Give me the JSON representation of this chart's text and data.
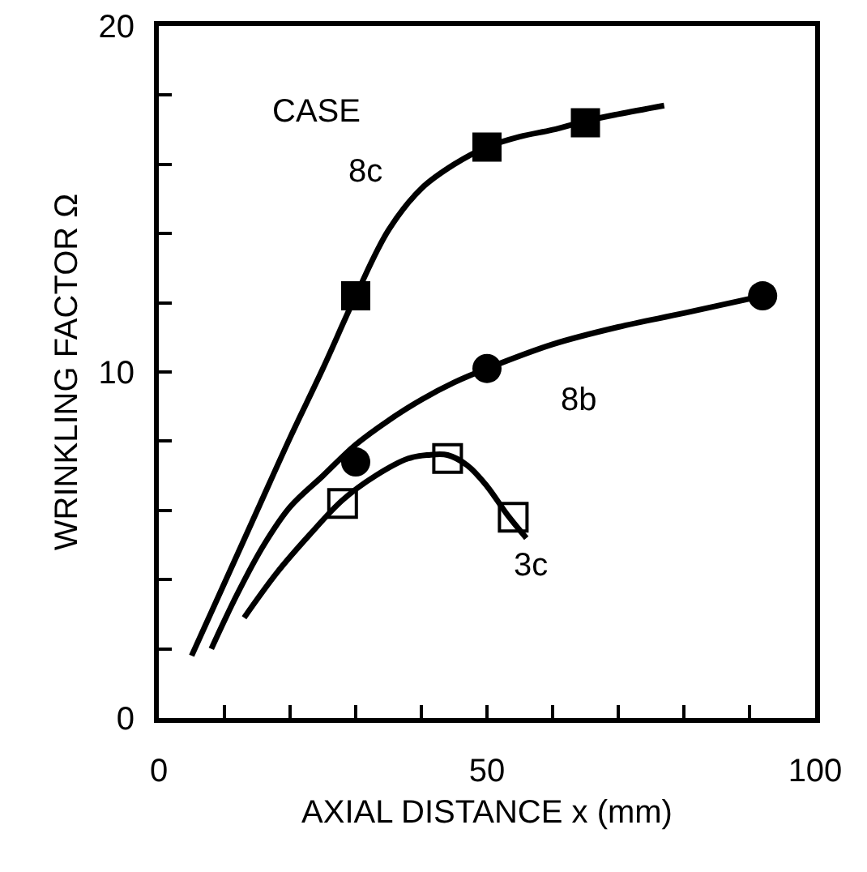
{
  "chart_data": {
    "type": "scatter",
    "xlabel": "AXIAL DISTANCE x (mm)",
    "ylabel": "WRINKLING FACTOR Ω",
    "xlim": [
      0,
      100
    ],
    "xticks": [
      0,
      {
        "value": 10,
        "label": null
      },
      {
        "value": 20,
        "label": null
      },
      {
        "value": 30,
        "label": null
      },
      {
        "value": 40,
        "label": null
      },
      50,
      {
        "value": 60,
        "label": null
      },
      {
        "value": 70,
        "label": null
      },
      {
        "value": 80,
        "label": null
      },
      {
        "value": 90,
        "label": null
      },
      100
    ],
    "ylim": [
      0,
      20
    ],
    "yticks": [
      0,
      {
        "value": 2,
        "label": null
      },
      {
        "value": 4,
        "label": null
      },
      {
        "value": 6,
        "label": null
      },
      {
        "value": 8,
        "label": null
      },
      10,
      {
        "value": 12,
        "label": null
      },
      {
        "value": 14,
        "label": null
      },
      {
        "value": 16,
        "label": null
      },
      {
        "value": 18,
        "label": null
      },
      20
    ],
    "grid": false,
    "series": [
      {
        "type": "line",
        "color": "#000000",
        "marker": "none",
        "x": [
          5,
          10,
          15,
          20,
          25,
          30,
          35,
          40,
          45,
          50,
          55,
          60,
          65,
          70,
          77
        ],
        "values": [
          1.8,
          3.9,
          6.0,
          8.1,
          10.1,
          12.2,
          14.1,
          15.3,
          16.0,
          16.5,
          16.8,
          17.0,
          17.25,
          17.45,
          17.7
        ]
      },
      {
        "type": "line",
        "color": "#000000",
        "marker": "none",
        "x": [
          8,
          12,
          16,
          20,
          25,
          30,
          35,
          40,
          45,
          50,
          60,
          70,
          80,
          92
        ],
        "values": [
          2.0,
          3.6,
          5.0,
          6.1,
          7.0,
          7.9,
          8.6,
          9.2,
          9.7,
          10.1,
          10.8,
          11.3,
          11.7,
          12.2
        ]
      },
      {
        "type": "line",
        "color": "#000000",
        "marker": "none",
        "x": [
          13,
          18,
          23,
          28,
          33,
          38,
          41,
          44,
          47,
          50,
          53,
          56
        ],
        "values": [
          2.9,
          4.2,
          5.3,
          6.3,
          7.0,
          7.5,
          7.6,
          7.6,
          7.3,
          6.7,
          5.9,
          5.2
        ]
      },
      {
        "type": "scatter",
        "color": "#000000",
        "marker": "square",
        "x": [
          30,
          50,
          65
        ],
        "values": [
          12.2,
          16.5,
          17.2
        ]
      },
      {
        "type": "scatter",
        "color": "#000000",
        "marker": "circle",
        "x": [
          30,
          50,
          92
        ],
        "values": [
          7.4,
          10.1,
          12.2
        ]
      },
      {
        "type": "scatter",
        "color": "#000000",
        "marker": "square-open",
        "x": [
          28,
          44,
          54
        ],
        "values": [
          6.2,
          7.5,
          5.8
        ]
      }
    ],
    "annotations": [
      "CASE",
      "8c",
      "8b",
      "3c"
    ]
  }
}
